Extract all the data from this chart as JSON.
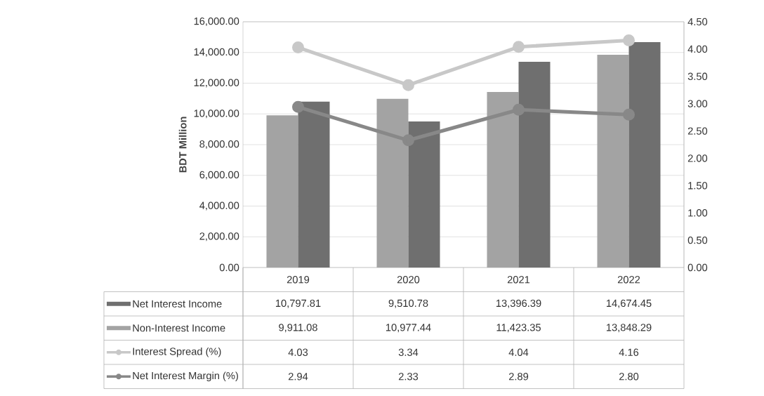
{
  "chart_data": {
    "type": "bar",
    "ylabel": "BDT Million",
    "categories": [
      "2019",
      "2020",
      "2021",
      "2022"
    ],
    "series": [
      {
        "name": "Net Interest Income",
        "color": "#6f6f6f",
        "values": [
          10797.81,
          9510.78,
          13396.39,
          14674.45
        ],
        "value_labels": [
          "10,797.81",
          "9,510.78",
          "13,396.39",
          "14,674.45"
        ]
      },
      {
        "name": "Non-Interest Income",
        "color": "#a3a3a3",
        "values": [
          9911.08,
          10977.44,
          11423.35,
          13848.29
        ],
        "value_labels": [
          "9,911.08",
          "10,977.44",
          "11,423.35",
          "13,848.29"
        ]
      },
      {
        "name": "Interest Spread (%)",
        "type": "line",
        "axis": "y2",
        "color": "#c8c8c8",
        "values": [
          4.03,
          3.34,
          4.04,
          4.16
        ],
        "value_labels": [
          "4.03",
          "3.34",
          "4.04",
          "4.16"
        ]
      },
      {
        "name": "Net Interest Margin (%)",
        "type": "line",
        "axis": "y2",
        "color": "#888888",
        "values": [
          2.94,
          2.33,
          2.89,
          2.8
        ],
        "value_labels": [
          "2.94",
          "2.33",
          "2.89",
          "2.80"
        ]
      }
    ],
    "ylim": [
      0,
      16000
    ],
    "yticks": [
      {
        "value": 0,
        "label": "0.00"
      },
      {
        "value": 2000,
        "label": "2,000.00"
      },
      {
        "value": 4000,
        "label": "4,000.00"
      },
      {
        "value": 6000,
        "label": "6,000.00"
      },
      {
        "value": 8000,
        "label": "8,000.00"
      },
      {
        "value": 10000,
        "label": "10,000.00"
      },
      {
        "value": 12000,
        "label": "12,000.00"
      },
      {
        "value": 14000,
        "label": "14,000.00"
      },
      {
        "value": 16000,
        "label": "16,000.00"
      }
    ],
    "y2lim": [
      0,
      4.5
    ],
    "y2ticks": [
      {
        "value": 0,
        "label": "0.00"
      },
      {
        "value": 0.5,
        "label": "0.50"
      },
      {
        "value": 1,
        "label": "1.00"
      },
      {
        "value": 1.5,
        "label": "1.50"
      },
      {
        "value": 2,
        "label": "2.00"
      },
      {
        "value": 2.5,
        "label": "2.50"
      },
      {
        "value": 3,
        "label": "3.00"
      },
      {
        "value": 3.5,
        "label": "3.50"
      },
      {
        "value": 4,
        "label": "4.00"
      },
      {
        "value": 4.5,
        "label": "4.50"
      }
    ],
    "grid": "y",
    "legend": "bottom",
    "marker": "circle"
  }
}
